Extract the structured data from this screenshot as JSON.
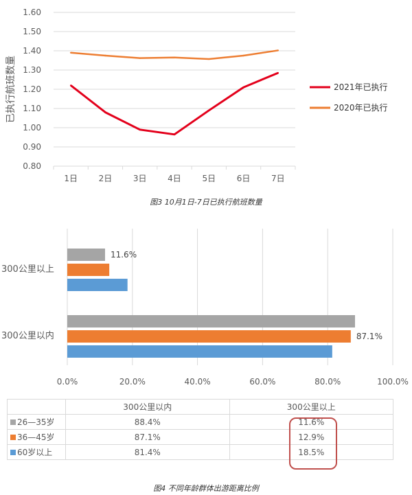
{
  "figure3": {
    "caption": "图3   10月1日-7日已执行航班数量",
    "chart_data": {
      "type": "line",
      "categories": [
        "1日",
        "2日",
        "3日",
        "4日",
        "5日",
        "6日",
        "7日"
      ],
      "ylabel": "已执行航班数量",
      "xlabel": "",
      "ylim": [
        0.8,
        1.6
      ],
      "yticks": [
        "0.80",
        "0.90",
        "1.00",
        "1.10",
        "1.20",
        "1.30",
        "1.40",
        "1.50",
        "1.60"
      ],
      "grid": "horizontal",
      "legend": "right",
      "series": [
        {
          "name": "2021年已执行",
          "color": "#e3001b",
          "values": [
            1.22,
            1.08,
            0.99,
            0.965,
            1.09,
            1.21,
            1.285
          ]
        },
        {
          "name": "2020年已执行",
          "color": "#ed7d31",
          "values": [
            1.39,
            1.375,
            1.362,
            1.365,
            1.357,
            1.375,
            1.402
          ]
        }
      ]
    }
  },
  "figure4": {
    "caption": "图4 不同年龄群体出游距离比例",
    "chart_data": {
      "type": "bar",
      "orientation": "horizontal",
      "categories": [
        "300公里以上",
        "300公里以内"
      ],
      "xlim": [
        0,
        100
      ],
      "xticks": [
        "0.0%",
        "20.0%",
        "40.0%",
        "60.0%",
        "80.0%",
        "100.0%"
      ],
      "grid": "vertical",
      "series": [
        {
          "name": "26—35岁",
          "color": "#a5a5a5",
          "values": [
            11.6,
            88.4
          ]
        },
        {
          "name": "36—45岁",
          "color": "#ed7d31",
          "values": [
            12.9,
            87.1
          ]
        },
        {
          "name": "60岁以上",
          "color": "#5b9bd5",
          "values": [
            18.5,
            81.4
          ]
        }
      ],
      "data_labels": [
        {
          "text": "11.6%",
          "category": 0,
          "series": 0
        },
        {
          "text": "87.1%",
          "category": 1,
          "series": 1
        }
      ]
    },
    "table": {
      "headers": [
        "",
        "300公里以内",
        "300公里以上"
      ],
      "rows": [
        {
          "label": "26—35岁",
          "color": "#a5a5a5",
          "cells": [
            "88.4%",
            "11.6%"
          ]
        },
        {
          "label": "36—45岁",
          "color": "#ed7d31",
          "cells": [
            "87.1%",
            "12.9%"
          ]
        },
        {
          "label": "60岁以上",
          "color": "#5b9bd5",
          "cells": [
            "81.4%",
            "18.5%"
          ]
        }
      ]
    }
  }
}
